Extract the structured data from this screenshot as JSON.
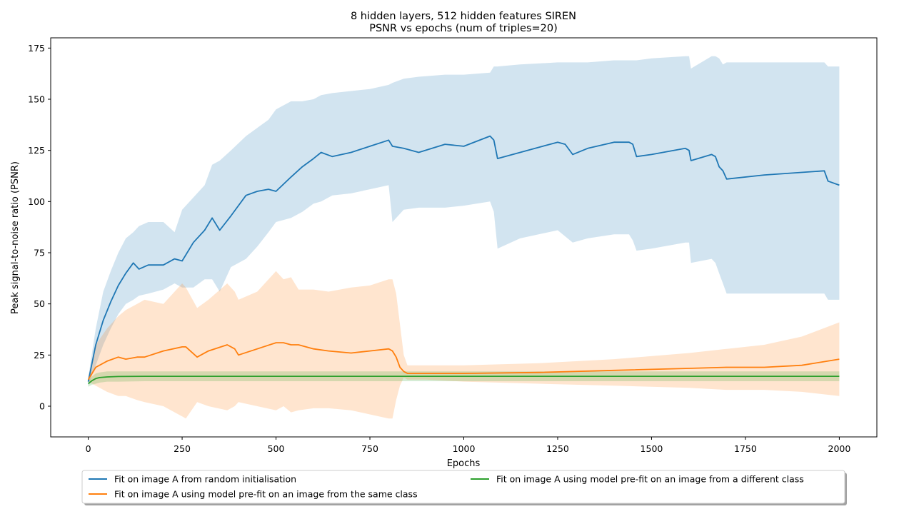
{
  "chart_data": {
    "type": "line",
    "title": "8 hidden layers, 512 hidden features SIREN",
    "subtitle": "PSNR vs epochs (num of triples=20)",
    "xlabel": "Epochs",
    "ylabel": "Peak signal-to-noise ratio (PSNR)",
    "xlim": [
      -100,
      2100
    ],
    "ylim": [
      -15,
      180
    ],
    "xticks": [
      0,
      250,
      500,
      750,
      1000,
      1250,
      1500,
      1750,
      2000
    ],
    "yticks": [
      0,
      25,
      50,
      75,
      100,
      125,
      150,
      175
    ],
    "grid": false,
    "legend_position": "below",
    "series": [
      {
        "name": "Fit on image A from random initialisation",
        "color": "#1f77b4",
        "x": [
          0,
          20,
          40,
          60,
          80,
          100,
          120,
          135,
          160,
          200,
          230,
          250,
          280,
          310,
          330,
          350,
          380,
          420,
          450,
          480,
          500,
          540,
          570,
          600,
          620,
          650,
          700,
          750,
          800,
          810,
          840,
          880,
          950,
          1000,
          1070,
          1080,
          1090,
          1150,
          1250,
          1270,
          1290,
          1330,
          1400,
          1440,
          1450,
          1460,
          1500,
          1590,
          1600,
          1605,
          1660,
          1670,
          1680,
          1690,
          1700,
          1800,
          1960,
          1970,
          2000
        ],
        "y": [
          12,
          30,
          42,
          51,
          59,
          65,
          70,
          67,
          69,
          69,
          72,
          71,
          80,
          86,
          92,
          86,
          93,
          103,
          105,
          106,
          105,
          112,
          117,
          121,
          124,
          122,
          124,
          127,
          130,
          127,
          126,
          124,
          128,
          127,
          132,
          130,
          121,
          124,
          129,
          128,
          123,
          126,
          129,
          129,
          128,
          122,
          123,
          126,
          125,
          120,
          123,
          122,
          117,
          115,
          111,
          113,
          115,
          110,
          108
        ],
        "upper": [
          14,
          38,
          56,
          66,
          75,
          82,
          85,
          88,
          90,
          90,
          85,
          96,
          102,
          108,
          118,
          120,
          125,
          132,
          136,
          140,
          145,
          149,
          149,
          150,
          152,
          153,
          154,
          155,
          157,
          158,
          160,
          161,
          162,
          162,
          163,
          166,
          166,
          167,
          168,
          168,
          168,
          168,
          169,
          169,
          169,
          169,
          170,
          171,
          171,
          165,
          171,
          171,
          170,
          167,
          168,
          168,
          168,
          166,
          166
        ],
        "lower": [
          10,
          20,
          30,
          38,
          45,
          50,
          52,
          54,
          55,
          57,
          60,
          58,
          58,
          62,
          62,
          56,
          68,
          72,
          78,
          85,
          90,
          92,
          95,
          99,
          100,
          103,
          104,
          106,
          108,
          90,
          96,
          97,
          97,
          98,
          100,
          95,
          77,
          82,
          86,
          83,
          80,
          82,
          84,
          84,
          81,
          76,
          77,
          80,
          80,
          70,
          72,
          70,
          65,
          60,
          55,
          55,
          55,
          52,
          52
        ]
      },
      {
        "name": "Fit on image A using model pre-fit on an image from the same class",
        "color": "#ff7f0e",
        "x": [
          0,
          20,
          50,
          80,
          100,
          130,
          150,
          200,
          250,
          260,
          290,
          320,
          370,
          390,
          400,
          450,
          500,
          520,
          540,
          560,
          600,
          640,
          700,
          750,
          800,
          810,
          820,
          830,
          840,
          850,
          870,
          900,
          1000,
          1200,
          1400,
          1600,
          1700,
          1800,
          1900,
          2000
        ],
        "y": [
          13,
          19,
          22,
          24,
          23,
          24,
          24,
          27,
          29,
          29,
          24,
          27,
          30,
          28,
          25,
          28,
          31,
          31,
          30,
          30,
          28,
          27,
          26,
          27,
          28,
          27,
          24,
          19,
          17,
          16,
          16,
          16,
          16,
          16.5,
          17.5,
          18.5,
          19,
          19,
          20,
          23
        ],
        "upper": [
          14,
          30,
          38,
          44,
          47,
          50,
          52,
          50,
          60,
          58,
          48,
          52,
          60,
          56,
          52,
          56,
          66,
          62,
          63,
          57,
          57,
          56,
          58,
          59,
          62,
          62,
          55,
          40,
          25,
          20,
          20,
          20,
          20,
          21,
          23,
          26,
          28,
          30,
          34,
          41
        ],
        "lower": [
          12,
          10,
          7,
          5,
          5,
          3,
          2,
          0,
          -5,
          -6,
          2,
          0,
          -2,
          0,
          2,
          0,
          -2,
          0,
          -3,
          -2,
          -1,
          -1,
          -2,
          -4,
          -6,
          -6,
          3,
          10,
          14,
          13,
          13,
          13,
          12,
          11,
          10,
          9,
          8,
          8,
          7,
          5
        ]
      },
      {
        "name": "Fit on image A using model pre-fit on an image from a different class",
        "color": "#2ca02c",
        "x": [
          0,
          10,
          20,
          30,
          50,
          80,
          150,
          300,
          600,
          1000,
          1500,
          2000
        ],
        "y": [
          11,
          12.5,
          13.5,
          14,
          14.3,
          14.5,
          14.6,
          14.6,
          14.6,
          14.6,
          14.6,
          14.6
        ],
        "upper": [
          12.5,
          14.5,
          16,
          16.5,
          17,
          17,
          17,
          17,
          17,
          17,
          17,
          17
        ],
        "lower": [
          9.5,
          10.5,
          11,
          11.5,
          12,
          12,
          12.2,
          12.2,
          12.2,
          12.2,
          12.2,
          12.2
        ]
      }
    ]
  }
}
